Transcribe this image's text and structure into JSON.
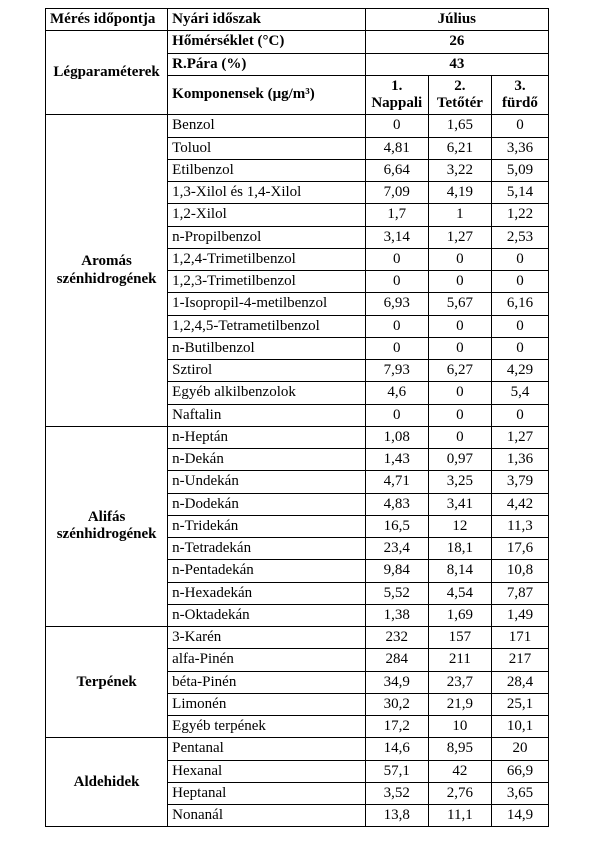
{
  "header": {
    "meres_idopontja": "Mérés időpontja",
    "nyari_idoszak": "Nyári időszak",
    "julius": "Július",
    "legparameterek": "Légparaméterek",
    "homerseklet_label": "Hőmérséklet (°C)",
    "homerseklet_value": "26",
    "rpara_label": "R.Pára (%)",
    "rpara_value": "43",
    "komponensek_label": "Komponensek (μg/m³)",
    "col1_a": "1.",
    "col1_b": "Nappali",
    "col2_a": "2.",
    "col2_b": "Tetőtér",
    "col3_a": "3.",
    "col3_b": "fürdő"
  },
  "groups": [
    {
      "title": "Aromás szénhidrogének",
      "rows": [
        {
          "name": "Benzol",
          "v": [
            "0",
            "1,65",
            "0"
          ]
        },
        {
          "name": "Toluol",
          "v": [
            "4,81",
            "6,21",
            "3,36"
          ]
        },
        {
          "name": "Etilbenzol",
          "v": [
            "6,64",
            "3,22",
            "5,09"
          ]
        },
        {
          "name": "1,3-Xilol és 1,4-Xilol",
          "v": [
            "7,09",
            "4,19",
            "5,14"
          ]
        },
        {
          "name": "1,2-Xilol",
          "v": [
            "1,7",
            "1",
            "1,22"
          ]
        },
        {
          "name": "n-Propilbenzol",
          "v": [
            "3,14",
            "1,27",
            "2,53"
          ]
        },
        {
          "name": "1,2,4-Trimetilbenzol",
          "v": [
            "0",
            "0",
            "0"
          ]
        },
        {
          "name": "1,2,3-Trimetilbenzol",
          "v": [
            "0",
            "0",
            "0"
          ]
        },
        {
          "name": "1-Isopropil-4-metilbenzol",
          "v": [
            "6,93",
            "5,67",
            "6,16"
          ]
        },
        {
          "name": "1,2,4,5-Tetrametilbenzol",
          "v": [
            "0",
            "0",
            "0"
          ]
        },
        {
          "name": "n-Butilbenzol",
          "v": [
            "0",
            "0",
            "0"
          ]
        },
        {
          "name": "Sztirol",
          "v": [
            "7,93",
            "6,27",
            "4,29"
          ]
        },
        {
          "name": "Egyéb alkilbenzolok",
          "v": [
            "4,6",
            "0",
            "5,4"
          ]
        },
        {
          "name": "Naftalin",
          "v": [
            "0",
            "0",
            "0"
          ]
        }
      ]
    },
    {
      "title": "Alifás szénhidrogének",
      "rows": [
        {
          "name": "n-Heptán",
          "v": [
            "1,08",
            "0",
            "1,27"
          ]
        },
        {
          "name": "n-Dekán",
          "v": [
            "1,43",
            "0,97",
            "1,36"
          ]
        },
        {
          "name": "n-Undekán",
          "v": [
            "4,71",
            "3,25",
            "3,79"
          ]
        },
        {
          "name": "n-Dodekán",
          "v": [
            "4,83",
            "3,41",
            "4,42"
          ]
        },
        {
          "name": "n-Tridekán",
          "v": [
            "16,5",
            "12",
            "11,3"
          ]
        },
        {
          "name": "n-Tetradekán",
          "v": [
            "23,4",
            "18,1",
            "17,6"
          ]
        },
        {
          "name": "n-Pentadekán",
          "v": [
            "9,84",
            "8,14",
            "10,8"
          ]
        },
        {
          "name": "n-Hexadekán",
          "v": [
            "5,52",
            "4,54",
            "7,87"
          ]
        },
        {
          "name": "n-Oktadekán",
          "v": [
            "1,38",
            "1,69",
            "1,49"
          ]
        }
      ]
    },
    {
      "title": "Terpének",
      "rows": [
        {
          "name": "3-Karén",
          "v": [
            "232",
            "157",
            "171"
          ]
        },
        {
          "name": "alfa-Pinén",
          "v": [
            "284",
            "211",
            "217"
          ]
        },
        {
          "name": "béta-Pinén",
          "v": [
            "34,9",
            "23,7",
            "28,4"
          ]
        },
        {
          "name": "Limonén",
          "v": [
            "30,2",
            "21,9",
            "25,1"
          ]
        },
        {
          "name": "Egyéb terpének",
          "v": [
            "17,2",
            "10",
            "10,1"
          ]
        }
      ]
    },
    {
      "title": "Aldehidek",
      "rows": [
        {
          "name": "Pentanal",
          "v": [
            "14,6",
            "8,95",
            "20"
          ]
        },
        {
          "name": "Hexanal",
          "v": [
            "57,1",
            "42",
            "66,9"
          ]
        },
        {
          "name": "Heptanal",
          "v": [
            "3,52",
            "2,76",
            "3,65"
          ]
        },
        {
          "name": "Nonanál",
          "v": [
            "13,8",
            "11,1",
            "14,9"
          ]
        }
      ]
    }
  ]
}
